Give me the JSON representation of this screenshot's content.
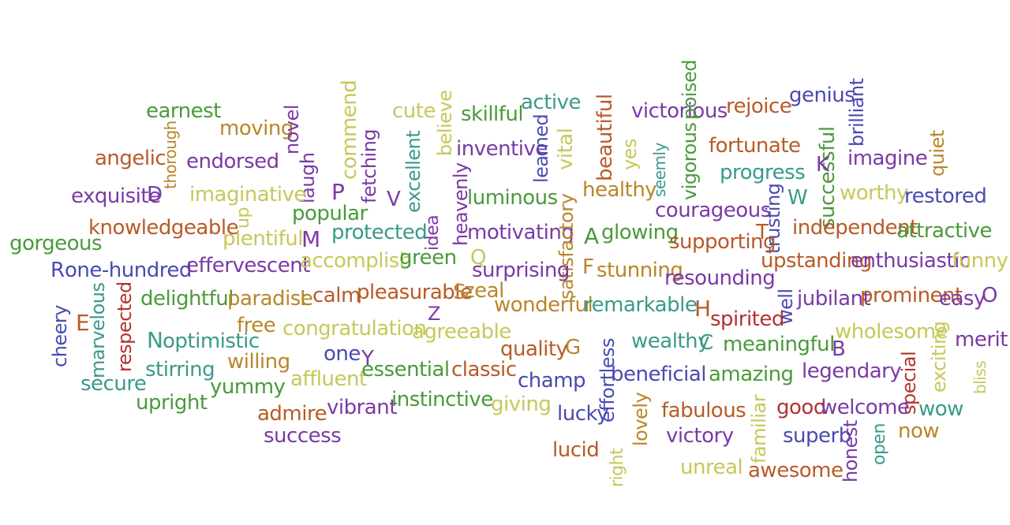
{
  "colors": {
    "green": "#4a9a3a",
    "lime": "#c6c85a",
    "brown": "#b85a28",
    "ochre": "#b8862a",
    "purple": "#7a3aa6",
    "teal": "#3a9a8a",
    "blue": "#4a4ab2",
    "red": "#b23232"
  },
  "words": [
    "earnest",
    "moving",
    "novel",
    "commend",
    "cute",
    "believe",
    "skillful",
    "active",
    "beautiful",
    "victorious",
    "poised",
    "rejoice",
    "genius",
    "brilliant",
    "angelic",
    "thorough",
    "endorsed",
    "laugh",
    "fetching",
    "inventive",
    "learned",
    "vital",
    "yes",
    "seemly",
    "vigorous",
    "fortunate",
    "successful",
    "imagine",
    "quiet",
    "progress",
    "exquisite",
    "D",
    "imaginative",
    "P",
    "excellent",
    "heavenly",
    "idea",
    "V",
    "luminous",
    "healthy",
    "courageous",
    "W",
    "trusting",
    "worthy",
    "restored",
    "K",
    "knowledgeable",
    "up",
    "popular",
    "plentiful",
    "M",
    "protected",
    "motivating",
    "A",
    "glowing",
    "supporting",
    "T",
    "independent",
    "attractive",
    "gorgeous",
    "R",
    "one-hundred",
    "effervescent",
    "accomplish",
    "green",
    "satisfactory",
    "Q",
    "F",
    "stunning",
    "resounding",
    "upstanding",
    "enthusiastic",
    "funny",
    "cheery",
    "marvelous",
    "E",
    "respected",
    "delightful",
    "paradise",
    "L",
    "calm",
    "pleasurable",
    "S",
    "zeal",
    "surprising",
    "wonderful",
    "Z",
    "remarkable",
    "H",
    "spirited",
    "well",
    "jubilant",
    "prominent",
    "easy",
    "O",
    "N",
    "optimistic",
    "free",
    "congratulation",
    "agreeable",
    "wholesome",
    "merit",
    "one",
    "Y",
    "quality",
    "G",
    "effortless",
    "wealthy",
    "C",
    "meaningful",
    "B",
    "secure",
    "stirring",
    "willing",
    "yummy",
    "affluent",
    "essential",
    "classic",
    "champ",
    "beneficial",
    "amazing",
    "legendary",
    "special",
    "exciting",
    "bliss",
    "upright",
    "admire",
    "vibrant",
    "instinctive",
    "giving",
    "lucky",
    "lovely",
    "fabulous",
    "familiar",
    "good",
    "welcome",
    "wow",
    "success",
    "lucid",
    "right",
    "victory",
    "unreal",
    "awesome",
    "superb",
    "honest",
    "open",
    "now"
  ]
}
